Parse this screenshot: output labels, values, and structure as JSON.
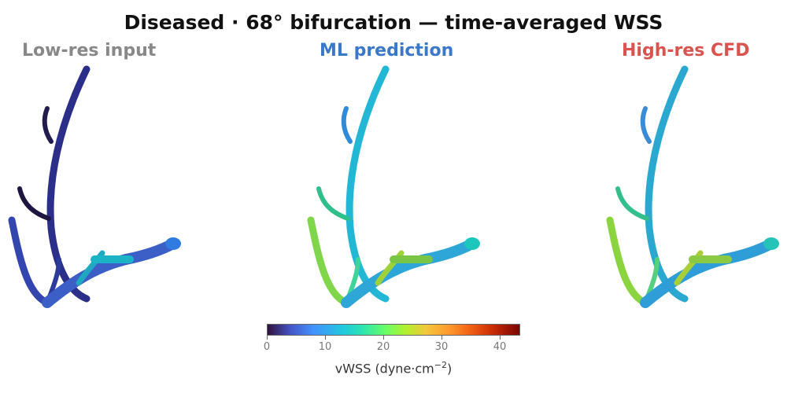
{
  "title": "Diseased · 68° bifurcation — time-averaged WSS",
  "panels": [
    {
      "label": "Low-res input"
    },
    {
      "label": "ML prediction"
    },
    {
      "label": "High-res CFD"
    }
  ],
  "colorbar": {
    "label_main": "vWSS  (dyne·cm",
    "label_exp": "−2",
    "label_close": ")",
    "ticks": [
      "0",
      "10",
      "20",
      "30",
      "40"
    ],
    "range": [
      0,
      43.5
    ],
    "colormap": "turbo"
  },
  "colors": {
    "low_res_title": "#888888",
    "ml_title": "#3a78c9",
    "high_res_title": "#d9534f"
  }
}
